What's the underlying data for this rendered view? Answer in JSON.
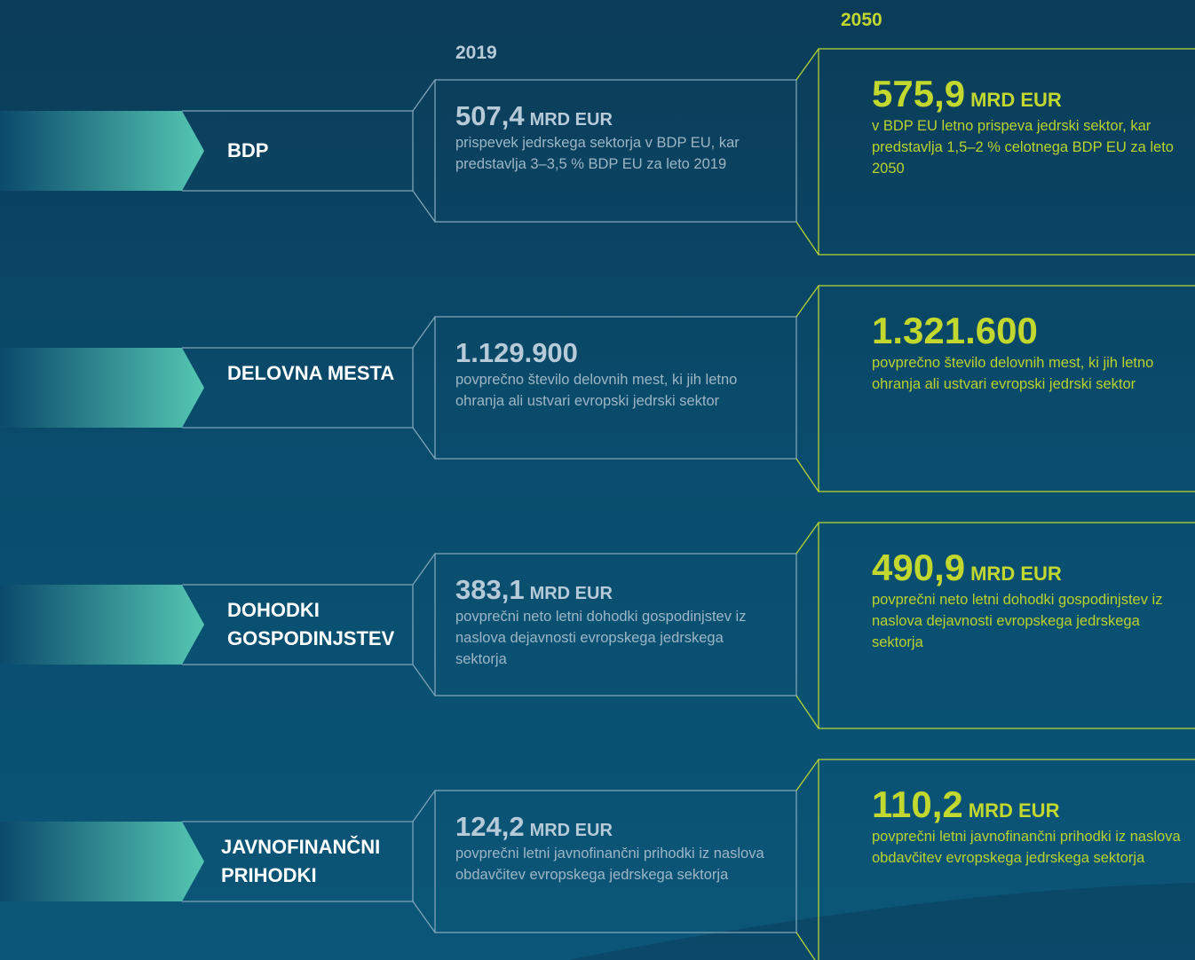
{
  "years": {
    "left": "2019",
    "right": "2050"
  },
  "rows": [
    {
      "label": "BDP",
      "left": {
        "number": "507,4",
        "unit": "MRD EUR",
        "text": "prispevek jedrskega sektorja v BDP EU, kar predstavlja 3–3,5 % BDP EU za leto 2019"
      },
      "right": {
        "number": "575,9",
        "unit": "MRD EUR",
        "text": "v BDP EU letno prispeva jedrski sektor, kar predstavlja 1,5–2 % celotnega BDP EU za leto 2050"
      }
    },
    {
      "label": "DELOVNA MESTA",
      "left": {
        "number": "1.129.900",
        "text": "povprečno število delovnih mest, ki jih letno ohranja ali ustvari evropski jedrski sektor"
      },
      "right": {
        "number": "1.321.600",
        "text": "povprečno število delovnih mest, ki jih letno ohranja ali ustvari evropski jedrski sektor"
      }
    },
    {
      "label": "DOHODKI GOSPODINJSTEV",
      "left": {
        "number": "383,1",
        "unit": "MRD EUR",
        "text": "povprečni neto letni dohodki gospodinjstev iz naslova dejavnosti evropskega jedrskega sektorja"
      },
      "right": {
        "number": "490,9",
        "unit": "MRD EUR",
        "text": "povprečni neto letni dohodki gospodinjstev iz naslova dejavnosti evropskega jedrskega sektorja"
      }
    },
    {
      "label": "JAVNOFINANČNI PRIHODKI",
      "left": {
        "number": "124,2",
        "unit": "MRD EUR",
        "text": "povprečni letni javnofinančni prihodki iz naslova obdavčitev evropskega jedrskega sektorja"
      },
      "right": {
        "number": "110,2",
        "unit": "MRD EUR",
        "text": "povprečni letni javnofinančni prihodki iz naslova obdavčitev evropskega jedrskega sektorja"
      }
    }
  ]
}
